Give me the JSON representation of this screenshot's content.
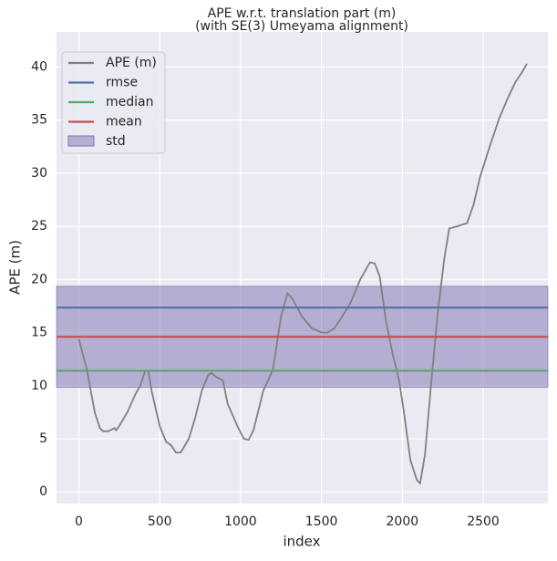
{
  "chart_data": {
    "type": "line",
    "title": "APE w.r.t. translation part (m)",
    "subtitle": "(with SE(3) Umeyama alignment)",
    "x_label": "index",
    "y_label": "APE (m)",
    "xlim": [
      -138,
      2900
    ],
    "ylim": [
      -1.1,
      43.3
    ],
    "xticks": [
      0,
      500,
      1000,
      1500,
      2000,
      2500
    ],
    "yticks": [
      0,
      5,
      10,
      15,
      20,
      25,
      30,
      35,
      40
    ],
    "grid": true,
    "legend": "upper-left",
    "series": [
      {
        "name": "APE (m)",
        "color": "#808080",
        "x": [
          0,
          50,
          80,
          100,
          130,
          150,
          180,
          220,
          230,
          250,
          300,
          350,
          380,
          410,
          430,
          450,
          500,
          540,
          570,
          600,
          630,
          680,
          720,
          760,
          800,
          820,
          850,
          890,
          920,
          980,
          1020,
          1050,
          1080,
          1140,
          1200,
          1250,
          1290,
          1320,
          1380,
          1440,
          1500,
          1540,
          1580,
          1620,
          1680,
          1740,
          1800,
          1830,
          1860,
          1900,
          1940,
          1980,
          2010,
          2050,
          2090,
          2110,
          2140,
          2180,
          2220,
          2260,
          2290,
          2340,
          2400,
          2440,
          2480,
          2540,
          2600,
          2650,
          2700,
          2740,
          2770
        ],
        "values": [
          14.4,
          11.5,
          9,
          7.4,
          6.0,
          5.7,
          5.7,
          6.0,
          5.8,
          6.2,
          7.5,
          9.2,
          10.0,
          11.4,
          11.4,
          9.5,
          6.2,
          4.7,
          4.4,
          3.7,
          3.7,
          5.0,
          7.0,
          9.5,
          11.0,
          11.2,
          10.8,
          10.5,
          8.3,
          6.2,
          5.0,
          4.9,
          5.8,
          9.5,
          11.5,
          16.5,
          18.7,
          18.2,
          16.5,
          15.4,
          15.0,
          15.0,
          15.4,
          16.3,
          17.8,
          20.0,
          21.6,
          21.5,
          20.3,
          16.0,
          13.0,
          10.5,
          7.5,
          3.0,
          1.1,
          0.8,
          3.5,
          10.5,
          17.0,
          22.0,
          24.8,
          25.0,
          25.3,
          27.0,
          29.6,
          32.5,
          35.2,
          37.0,
          38.6,
          39.5,
          40.3
        ]
      }
    ],
    "stats": [
      {
        "name": "rmse",
        "color": "#4c72b0",
        "value": 17.35
      },
      {
        "name": "median",
        "color": "#55a868",
        "value": 11.4
      },
      {
        "name": "mean",
        "color": "#c44e52",
        "value": 14.6
      }
    ],
    "std": {
      "name": "std",
      "color": "#8172b2",
      "value": 4.75
    }
  }
}
